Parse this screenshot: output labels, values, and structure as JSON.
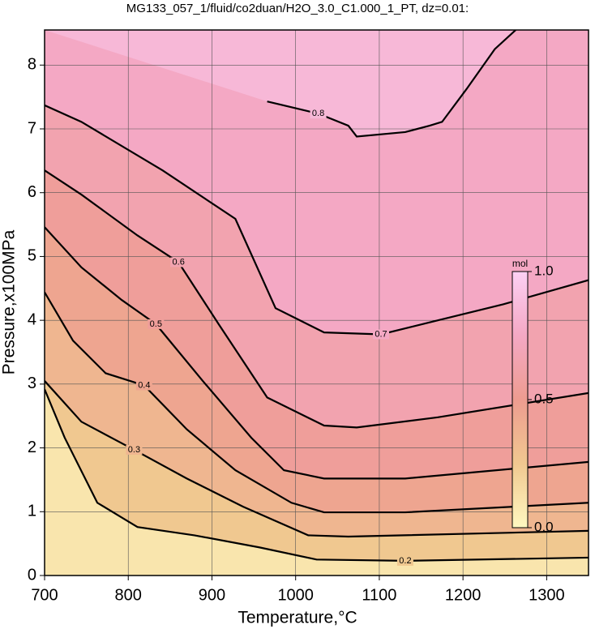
{
  "chart_data": {
    "type": "contour",
    "title": "MG133_057_1/fluid/co2duan/H2O_3.0_C1.000_1_PT, dz=0.01:",
    "x_label": "Temperature,°C",
    "y_label": "Pressure,x100MPa",
    "xlim": [
      700,
      1350
    ],
    "ylim": [
      0,
      8.55
    ],
    "xticks": [
      700,
      800,
      900,
      1000,
      1100,
      1200,
      1300
    ],
    "yticks": [
      0,
      1,
      2,
      3,
      4,
      5,
      6,
      7,
      8
    ],
    "grid": true,
    "contours": [
      {
        "level": 0.2,
        "x": [
          700,
          724,
          763,
          811,
          879,
          957,
          1025,
          1131,
          1350
        ],
        "y": [
          2.92,
          2.16,
          1.14,
          0.76,
          0.63,
          0.44,
          0.25,
          0.23,
          0.28
        ]
      },
      {
        "level": 0.3,
        "x": [
          700,
          744,
          807,
          870,
          937,
          1015,
          1063,
          1350
        ],
        "y": [
          3.05,
          2.41,
          1.97,
          1.52,
          1.08,
          0.63,
          0.61,
          0.7
        ]
      },
      {
        "level": 0.4,
        "x": [
          700,
          734,
          773,
          819,
          870,
          928,
          995,
          1034,
          1131,
          1350
        ],
        "y": [
          4.44,
          3.68,
          3.17,
          2.98,
          2.29,
          1.65,
          1.14,
          0.99,
          0.99,
          1.14
        ]
      },
      {
        "level": 0.5,
        "x": [
          700,
          744,
          792,
          833,
          889,
          947,
          986,
          1034,
          1131,
          1350
        ],
        "y": [
          5.46,
          4.83,
          4.32,
          3.94,
          3.05,
          2.16,
          1.65,
          1.52,
          1.52,
          1.78
        ]
      },
      {
        "level": 0.6,
        "x": [
          700,
          744,
          811,
          860,
          908,
          966,
          1034,
          1073,
          1170,
          1350
        ],
        "y": [
          6.35,
          5.97,
          5.33,
          4.91,
          3.94,
          2.79,
          2.35,
          2.32,
          2.48,
          2.86
        ]
      },
      {
        "level": 0.7,
        "x": [
          700,
          744,
          841,
          928,
          976,
          1034,
          1102,
          1170,
          1248,
          1350
        ],
        "y": [
          7.37,
          7.11,
          6.35,
          5.59,
          4.19,
          3.81,
          3.78,
          4.0,
          4.25,
          4.63
        ]
      },
      {
        "level": 0.8,
        "x": [
          966,
          1027,
          1063,
          1073,
          1131,
          1160,
          1175,
          1204,
          1238,
          1263
        ],
        "y": [
          7.43,
          7.24,
          7.05,
          6.88,
          6.95,
          7.05,
          7.11,
          7.62,
          8.25,
          8.55
        ]
      }
    ],
    "colorbar": {
      "label": "mol",
      "lim": [
        0,
        1
      ],
      "ticks": [
        {
          "value": 1,
          "label": "1.0"
        },
        {
          "value": 0.5,
          "label": "0.5"
        },
        {
          "value": 0,
          "label": "0.0"
        }
      ],
      "colors": [
        "#fff8c0",
        "#f0c890",
        "#ee9c90",
        "#f4a8c4",
        "#fcd0f4"
      ]
    }
  }
}
